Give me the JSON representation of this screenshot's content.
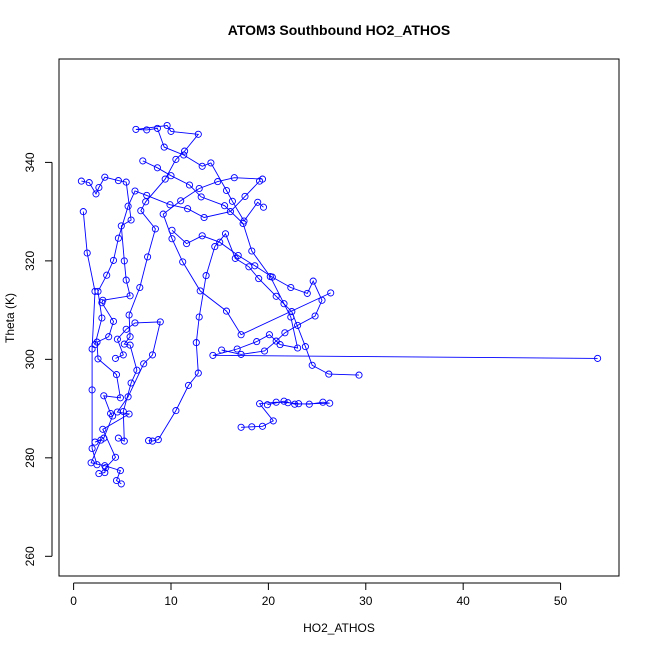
{
  "chart_data": {
    "type": "line",
    "title": "ATOM3 Southbound HO2_ATHOS",
    "xlabel": "HO2_ATHOS",
    "ylabel": "Theta (K)",
    "xlim": [
      -1.5,
      56
    ],
    "ylim": [
      256,
      361
    ],
    "xticks": [
      0,
      10,
      20,
      30,
      40,
      50
    ],
    "yticks": [
      260,
      280,
      300,
      320,
      340
    ],
    "marker": "open-circle",
    "colors": {
      "series": "#0000ff",
      "axis": "#000000"
    },
    "series": [
      {
        "segments": [
          [
            [
              4.9,
              274.7
            ],
            [
              4.4,
              275.4
            ],
            [
              4.8,
              277.4
            ],
            [
              3.2,
              278.4
            ],
            [
              1.8,
              279.0
            ],
            [
              2.8,
              283.6
            ],
            [
              2.2,
              283.2
            ],
            [
              3.1,
              284.0
            ],
            [
              4.0,
              288.5
            ],
            [
              3.8,
              289.0
            ],
            [
              3.1,
              292.6
            ],
            [
              4.8,
              292.2
            ],
            [
              4.4,
              296.9
            ],
            [
              2.5,
              300.1
            ],
            [
              2.4,
              303.5
            ],
            [
              3.6,
              304.6
            ],
            [
              4.1,
              307.7
            ],
            [
              2.9,
              311.5
            ],
            [
              3.0,
              312.0
            ],
            [
              5.8,
              312.9
            ],
            [
              5.4,
              316.1
            ],
            [
              5.2,
              320.0
            ],
            [
              4.9,
              327.1
            ],
            [
              5.9,
              328.3
            ],
            [
              5.4,
              336.0
            ],
            [
              4.6,
              336.3
            ],
            [
              3.2,
              337.0
            ],
            [
              2.6,
              334.9
            ],
            [
              2.3,
              333.6
            ],
            [
              1.6,
              335.9
            ],
            [
              0.8,
              336.2
            ]
          ],
          [
            [
              2.6,
              276.8
            ],
            [
              3.2,
              277.0
            ],
            [
              3.3,
              278.0
            ],
            [
              4.3,
              280.1
            ],
            [
              3.0,
              285.8
            ],
            [
              5.7,
              288.9
            ],
            [
              4.5,
              289.3
            ],
            [
              5.6,
              292.4
            ],
            [
              7.2,
              299.1
            ],
            [
              8.1,
              300.9
            ],
            [
              8.9,
              307.6
            ],
            [
              6.3,
              307.4
            ],
            [
              5.4,
              306.1
            ],
            [
              4.5,
              304.1
            ],
            [
              5.1,
              300.9
            ],
            [
              4.3,
              300.2
            ]
          ],
          [
            [
              4.6,
              284.0
            ],
            [
              5.2,
              283.4
            ],
            [
              5.1,
              289.4
            ],
            [
              5.9,
              295.2
            ],
            [
              6.5,
              297.8
            ],
            [
              5.8,
              302.9
            ],
            [
              5.2,
              303.1
            ],
            [
              5.8,
              304.6
            ],
            [
              5.7,
              309.0
            ],
            [
              6.8,
              314.6
            ],
            [
              7.6,
              320.8
            ],
            [
              8.4,
              326.5
            ],
            [
              6.9,
              330.2
            ],
            [
              7.4,
              332.0
            ],
            [
              9.4,
              336.6
            ],
            [
              10.5,
              340.6
            ],
            [
              11.4,
              342.3
            ],
            [
              12.8,
              345.7
            ],
            [
              10.0,
              346.3
            ],
            [
              9.6,
              347.5
            ],
            [
              6.4,
              346.7
            ],
            [
              7.5,
              346.6
            ],
            [
              8.6,
              346.9
            ],
            [
              9.3,
              343.1
            ],
            [
              11.3,
              341.5
            ],
            [
              13.2,
              339.2
            ],
            [
              14.1,
              339.9
            ],
            [
              15.7,
              334.3
            ],
            [
              16.3,
              332.1
            ],
            [
              17.5,
              328.1
            ],
            [
              18.9,
              331.9
            ],
            [
              19.5,
              330.9
            ]
          ],
          [
            [
              1.0,
              330.0
            ],
            [
              1.4,
              321.6
            ],
            [
              2.2,
              313.8
            ],
            [
              1.9,
              302.1
            ],
            [
              1.9,
              293.8
            ],
            [
              1.9,
              281.9
            ],
            [
              2.4,
              278.6
            ]
          ],
          [
            [
              7.7,
              283.5
            ],
            [
              8.1,
              283.4
            ],
            [
              8.7,
              283.7
            ],
            [
              10.5,
              289.6
            ],
            [
              11.8,
              294.7
            ],
            [
              12.8,
              297.2
            ],
            [
              12.6,
              303.4
            ],
            [
              12.9,
              308.6
            ],
            [
              13.6,
              317.0
            ],
            [
              14.5,
              322.9
            ],
            [
              15.6,
              325.5
            ],
            [
              16.6,
              320.5
            ],
            [
              18.0,
              318.8
            ],
            [
              19.0,
              316.4
            ],
            [
              20.8,
              312.8
            ],
            [
              22.4,
              309.7
            ],
            [
              23.8,
              302.6
            ],
            [
              24.5,
              298.8
            ],
            [
              26.2,
              297.0
            ],
            [
              29.3,
              296.8
            ]
          ],
          [
            [
              17.2,
              286.2
            ],
            [
              18.3,
              286.3
            ],
            [
              19.4,
              286.4
            ],
            [
              20.5,
              287.5
            ],
            [
              19.1,
              291.0
            ],
            [
              20.8,
              291.3
            ],
            [
              22.0,
              291.2
            ],
            [
              23.1,
              291.0
            ],
            [
              24.2,
              290.9
            ],
            [
              25.6,
              291.3
            ],
            [
              26.3,
              291.1
            ],
            [
              22.7,
              290.9
            ],
            [
              21.6,
              291.5
            ],
            [
              19.9,
              290.8
            ]
          ],
          [
            [
              53.8,
              300.2
            ],
            [
              14.3,
              300.8
            ],
            [
              16.8,
              302.1
            ],
            [
              18.8,
              303.6
            ],
            [
              20.1,
              305.0
            ],
            [
              21.2,
              303.0
            ],
            [
              23.0,
              302.3
            ],
            [
              22.3,
              308.6
            ],
            [
              21.6,
              311.3
            ],
            [
              20.2,
              316.8
            ],
            [
              18.3,
              322.0
            ],
            [
              17.4,
              327.6
            ],
            [
              15.5,
              331.2
            ],
            [
              13.1,
              333.0
            ],
            [
              11.9,
              335.4
            ],
            [
              10.0,
              337.3
            ],
            [
              8.6,
              338.9
            ],
            [
              7.1,
              340.3
            ]
          ],
          [
            [
              26.4,
              313.5
            ],
            [
              17.2,
              305.0
            ],
            [
              15.7,
              309.8
            ],
            [
              13.0,
              313.9
            ],
            [
              11.2,
              319.8
            ],
            [
              10.1,
              324.5
            ],
            [
              9.2,
              329.5
            ],
            [
              11.0,
              332.2
            ],
            [
              12.9,
              334.7
            ],
            [
              14.8,
              336.1
            ],
            [
              16.5,
              336.9
            ],
            [
              19.4,
              336.6
            ]
          ],
          [
            [
              19.1,
              336.2
            ],
            [
              17.6,
              333.1
            ],
            [
              16.1,
              330.0
            ],
            [
              13.4,
              328.8
            ],
            [
              11.7,
              330.6
            ],
            [
              9.9,
              331.4
            ],
            [
              7.5,
              333.3
            ],
            [
              6.3,
              334.2
            ],
            [
              5.6,
              331.1
            ],
            [
              4.6,
              324.6
            ],
            [
              4.1,
              320.1
            ],
            [
              3.4,
              317.1
            ],
            [
              2.5,
              313.8
            ],
            [
              2.9,
              308.4
            ],
            [
              2.2,
              303.0
            ]
          ],
          [
            [
              10.1,
              326.2
            ],
            [
              11.6,
              323.5
            ],
            [
              13.2,
              325.1
            ],
            [
              15.0,
              323.8
            ],
            [
              16.9,
              321.1
            ],
            [
              18.6,
              319.0
            ],
            [
              20.4,
              316.7
            ],
            [
              22.3,
              314.6
            ],
            [
              24.0,
              313.4
            ],
            [
              24.6,
              315.9
            ],
            [
              25.5,
              312.0
            ],
            [
              24.8,
              308.8
            ],
            [
              23.0,
              306.9
            ],
            [
              21.7,
              305.4
            ],
            [
              20.8,
              303.7
            ],
            [
              19.6,
              301.7
            ],
            [
              17.2,
              301.0
            ],
            [
              15.2,
              301.9
            ]
          ]
        ]
      }
    ]
  }
}
